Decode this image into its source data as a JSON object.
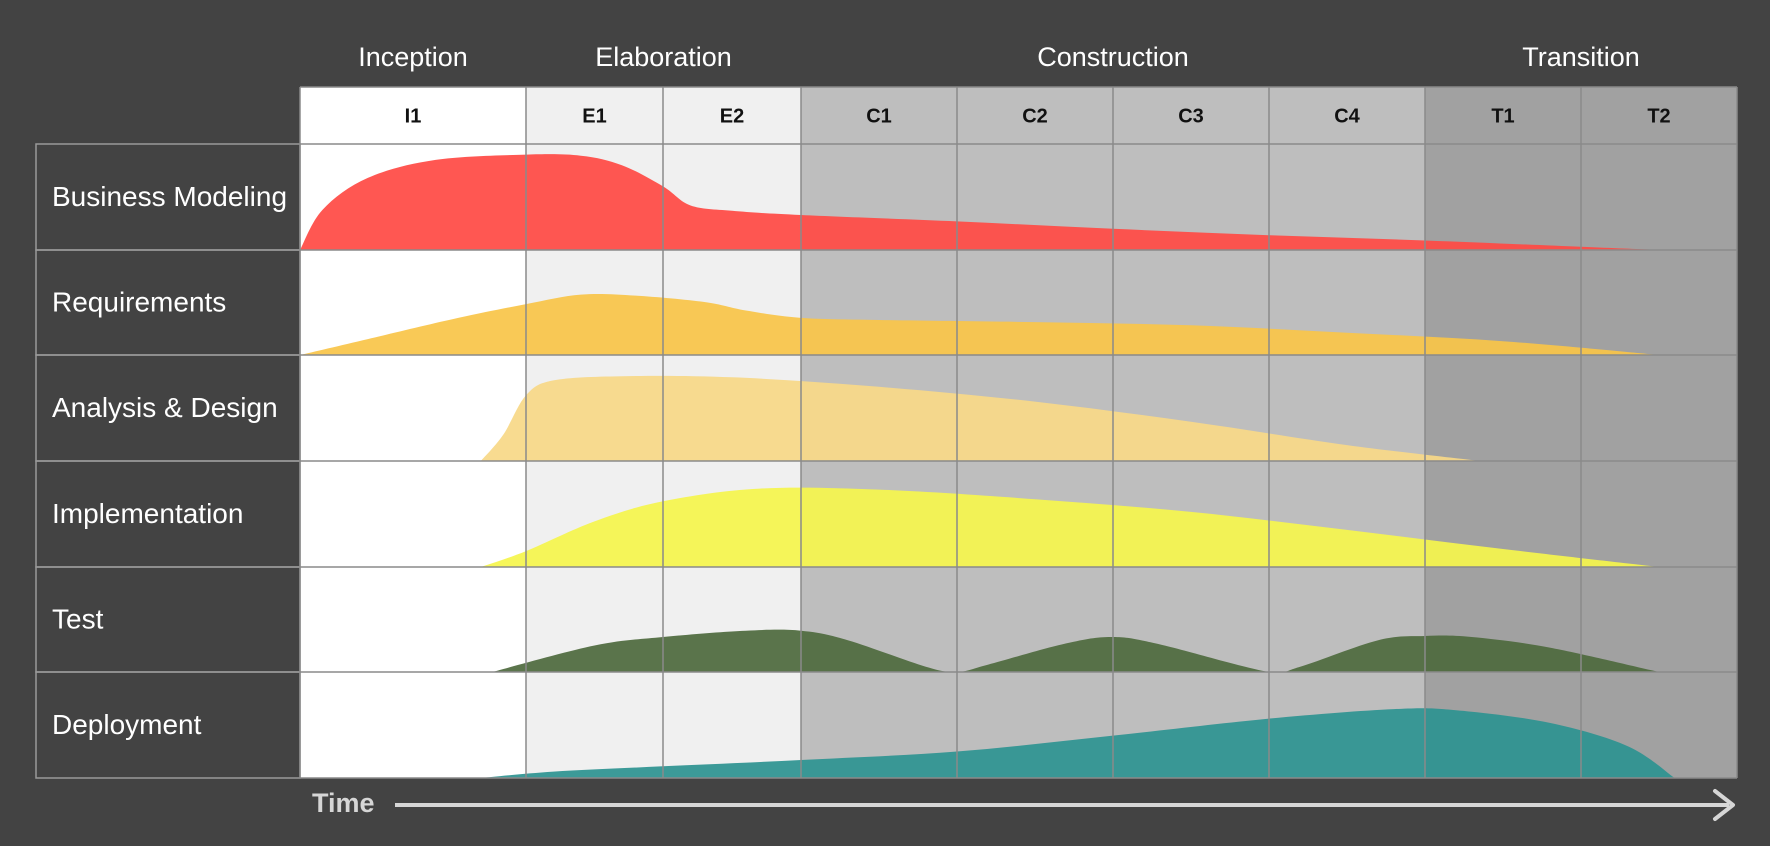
{
  "phases": [
    {
      "name": "Inception",
      "iterations": 1
    },
    {
      "name": "Elaboration",
      "iterations": 2
    },
    {
      "name": "Construction",
      "iterations": 4
    },
    {
      "name": "Transition",
      "iterations": 2
    }
  ],
  "iterations": [
    "I1",
    "E1",
    "E2",
    "C1",
    "C2",
    "C3",
    "C4",
    "T1",
    "T2"
  ],
  "disciplines": [
    {
      "name": "Business Modeling",
      "color": "#ff4a45"
    },
    {
      "name": "Requirements",
      "color": "#f9c549"
    },
    {
      "name": "Analysis & Design",
      "color": "#f7d888"
    },
    {
      "name": "Implementation",
      "color": "#f5f54e"
    },
    {
      "name": "Test",
      "color": "#4f6a3e"
    },
    {
      "name": "Deployment",
      "color": "#2e9391"
    }
  ],
  "phase_colors": {
    "Inception": "#ffffff",
    "Elaboration": "#f0f0f0",
    "Construction": "#bebebe",
    "Transition": "#a1a1a1"
  },
  "background_color": "#434343",
  "time_label": "Time",
  "effort_curves": {
    "Business Modeling": [
      [
        0,
        0.0
      ],
      [
        0.1,
        0.38
      ],
      [
        0.3,
        0.68
      ],
      [
        0.6,
        0.85
      ],
      [
        1.0,
        0.9
      ],
      [
        1.4,
        0.89
      ],
      [
        1.7,
        0.8
      ],
      [
        2.0,
        0.6
      ],
      [
        2.2,
        0.42
      ],
      [
        2.5,
        0.37
      ],
      [
        3.0,
        0.33
      ],
      [
        4.0,
        0.27
      ],
      [
        5.0,
        0.2
      ],
      [
        6.0,
        0.14
      ],
      [
        7.0,
        0.09
      ],
      [
        8.0,
        0.03
      ],
      [
        8.5,
        0.0
      ]
    ],
    "Requirements": [
      [
        0,
        0.0
      ],
      [
        0.3,
        0.15
      ],
      [
        0.7,
        0.35
      ],
      [
        1.0,
        0.48
      ],
      [
        1.4,
        0.57
      ],
      [
        1.8,
        0.56
      ],
      [
        2.3,
        0.5
      ],
      [
        2.6,
        0.42
      ],
      [
        3.0,
        0.35
      ],
      [
        3.5,
        0.33
      ],
      [
        4.5,
        0.31
      ],
      [
        5.5,
        0.28
      ],
      [
        6.5,
        0.21
      ],
      [
        7.5,
        0.13
      ],
      [
        8.5,
        0.0
      ]
    ],
    "Analysis & Design": [
      [
        0.8,
        0.0
      ],
      [
        0.9,
        0.25
      ],
      [
        1.0,
        0.62
      ],
      [
        1.2,
        0.76
      ],
      [
        1.7,
        0.8
      ],
      [
        2.5,
        0.79
      ],
      [
        3.5,
        0.7
      ],
      [
        4.5,
        0.56
      ],
      [
        5.5,
        0.37
      ],
      [
        6.5,
        0.15
      ],
      [
        7.35,
        0.0
      ]
    ],
    "Implementation": [
      [
        0.8,
        0.0
      ],
      [
        1.0,
        0.15
      ],
      [
        1.5,
        0.43
      ],
      [
        2.0,
        0.62
      ],
      [
        2.7,
        0.74
      ],
      [
        3.5,
        0.73
      ],
      [
        4.5,
        0.64
      ],
      [
        5.5,
        0.52
      ],
      [
        6.5,
        0.35
      ],
      [
        7.5,
        0.17
      ],
      [
        8.5,
        0.0
      ]
    ],
    "Test": [
      [
        0.85,
        0.0
      ],
      [
        1.5,
        0.25
      ],
      [
        2.0,
        0.33
      ],
      [
        2.6,
        0.39
      ],
      [
        3.0,
        0.39
      ],
      [
        3.3,
        0.3
      ],
      [
        3.8,
        0.05
      ],
      [
        4.0,
        0.0
      ],
      [
        4.2,
        0.07
      ],
      [
        4.7,
        0.27
      ],
      [
        5.0,
        0.33
      ],
      [
        5.3,
        0.26
      ],
      [
        6.0,
        0.0
      ],
      [
        6.2,
        0.05
      ],
      [
        6.7,
        0.3
      ],
      [
        7.0,
        0.34
      ],
      [
        7.3,
        0.33
      ],
      [
        7.8,
        0.23
      ],
      [
        8.5,
        0.0
      ]
    ],
    "Deployment": [
      [
        0.8,
        0.0
      ],
      [
        1.2,
        0.06
      ],
      [
        2.0,
        0.11
      ],
      [
        3.0,
        0.17
      ],
      [
        4.0,
        0.25
      ],
      [
        5.0,
        0.4
      ],
      [
        6.0,
        0.56
      ],
      [
        6.8,
        0.65
      ],
      [
        7.2,
        0.64
      ],
      [
        7.8,
        0.52
      ],
      [
        8.3,
        0.3
      ],
      [
        8.6,
        0.0
      ]
    ]
  }
}
